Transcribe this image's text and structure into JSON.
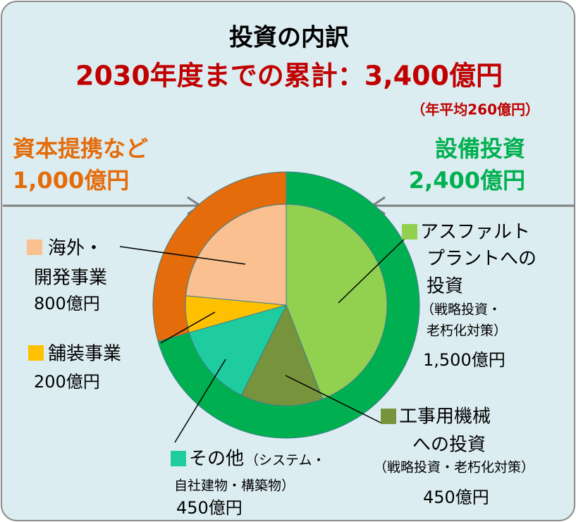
{
  "chart_data": {
    "type": "pie",
    "title": "投資の内訳",
    "subtitle": "2030年度までの累計：3,400億円",
    "note": "（年平均260億円）",
    "series": [
      {
        "categories": [
          "設備投資",
          "資本提携など"
        ],
        "values": [
          2400,
          1000
        ],
        "value_labels": [
          "2,400億円",
          "1,000億円"
        ],
        "colors": [
          "#00b050",
          "#e46c0a"
        ]
      },
      {
        "categories": [
          [
            "アスファルト",
            "プラントへの",
            "投資"
          ],
          [
            "工事用機械",
            "への投資"
          ],
          [
            "その他"
          ],
          [
            "舗装事業"
          ],
          [
            "海外・",
            "開発事業"
          ]
        ],
        "notes": [
          [
            "（戦略投資・",
            "老朽化対策）"
          ],
          [
            "（戦略投資・老朽化対策）"
          ],
          [
            "（システム・",
            "自社建物・構築物）"
          ],
          [],
          []
        ],
        "values": [
          1500,
          450,
          450,
          200,
          800
        ],
        "value_labels": [
          "1,500億円",
          "450億円",
          "450億円",
          "200億円",
          "800億円"
        ],
        "colors": [
          "#92d050",
          "#77933c",
          "#1fcc9f",
          "#ffc000",
          "#fac090"
        ]
      }
    ]
  }
}
